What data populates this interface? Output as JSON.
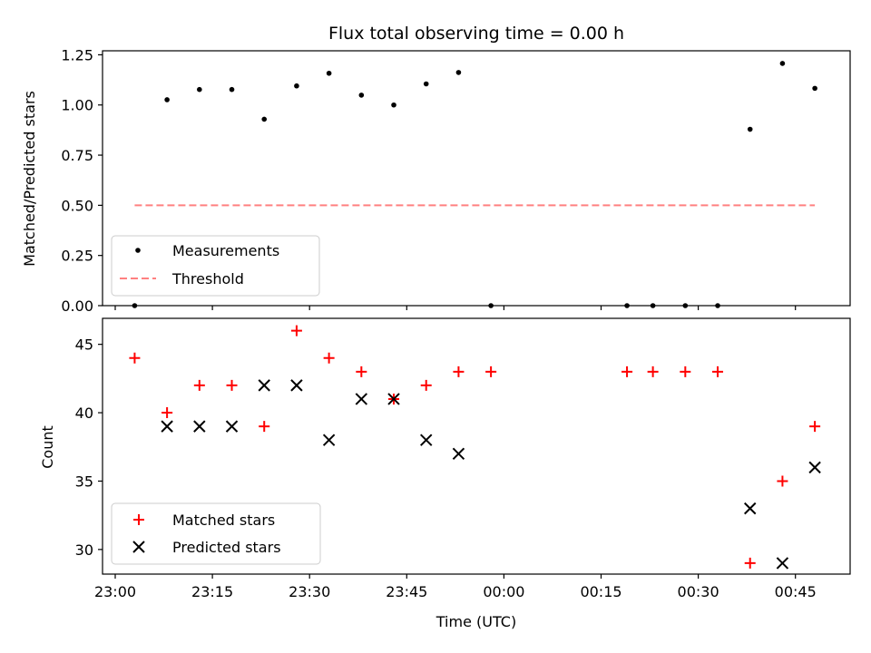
{
  "chart_data": [
    {
      "type": "scatter",
      "title": "Flux total observing time = 0.00 h",
      "xlabel": "",
      "ylabel": "Matched/Predicted stars",
      "x_ticks": [
        "23:00",
        "23:15",
        "23:30",
        "23:45",
        "00:00",
        "00:15",
        "00:30",
        "00:45"
      ],
      "y_ticks": [
        "0.00",
        "0.25",
        "0.50",
        "0.75",
        "1.00",
        "1.25"
      ],
      "ylim": [
        0,
        1.27
      ],
      "legend": {
        "placement": "lower left",
        "entries": [
          "Measurements",
          "Threshold"
        ]
      },
      "series": [
        {
          "name": "Measurements",
          "marker": "dot",
          "color": "#000000",
          "x": [
            "23:03",
            "23:08",
            "23:13",
            "23:18",
            "23:23",
            "23:28",
            "23:33",
            "23:38",
            "23:43",
            "23:48",
            "23:53",
            "23:58",
            "00:19",
            "00:23",
            "00:28",
            "00:33",
            "00:38",
            "00:43",
            "00:48"
          ],
          "y": [
            0.0,
            1.026,
            1.077,
            1.077,
            0.929,
            1.095,
            1.158,
            1.049,
            1.0,
            1.105,
            1.162,
            0.0,
            0.0,
            0.0,
            0.0,
            0.0,
            0.879,
            1.207,
            1.083
          ]
        },
        {
          "name": "Threshold",
          "style": "dashed",
          "color": "#ff8080",
          "x": [
            "23:03",
            "00:48"
          ],
          "y": [
            0.5,
            0.5
          ]
        }
      ]
    },
    {
      "type": "scatter",
      "title": "",
      "xlabel": "Time (UTC)",
      "ylabel": "Count",
      "x_ticks": [
        "23:00",
        "23:15",
        "23:30",
        "23:45",
        "00:00",
        "00:15",
        "00:30",
        "00:45"
      ],
      "y_ticks": [
        "30",
        "35",
        "40",
        "45"
      ],
      "ylim": [
        28.2,
        46.9
      ],
      "legend": {
        "placement": "lower left",
        "entries": [
          "Matched stars",
          "Predicted stars"
        ]
      },
      "series": [
        {
          "name": "Matched stars",
          "marker": "plus",
          "color": "#ff0000",
          "x": [
            "23:03",
            "23:08",
            "23:13",
            "23:18",
            "23:23",
            "23:28",
            "23:33",
            "23:38",
            "23:43",
            "23:48",
            "23:53",
            "23:58",
            "00:19",
            "00:23",
            "00:28",
            "00:33",
            "00:38",
            "00:43",
            "00:48"
          ],
          "y": [
            44,
            40,
            42,
            42,
            39,
            46,
            44,
            43,
            41,
            42,
            43,
            43,
            43,
            43,
            43,
            43,
            29,
            35,
            39
          ]
        },
        {
          "name": "Predicted stars",
          "marker": "x",
          "color": "#000000",
          "x": [
            "23:08",
            "23:13",
            "23:18",
            "23:23",
            "23:28",
            "23:33",
            "23:38",
            "23:43",
            "23:48",
            "23:53",
            "00:38",
            "00:43",
            "00:48"
          ],
          "y": [
            39,
            39,
            39,
            42,
            42,
            38,
            41,
            41,
            38,
            37,
            33,
            29,
            36
          ]
        }
      ]
    }
  ]
}
